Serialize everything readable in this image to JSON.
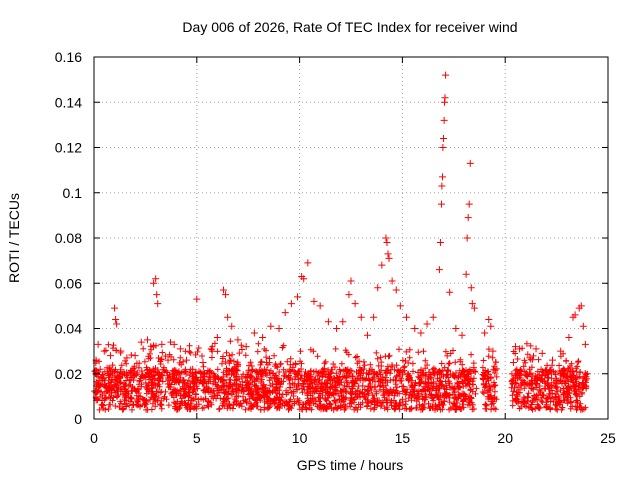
{
  "chart_data": {
    "type": "scatter",
    "title": "Day 006 of 2026, Rate Of TEC Index for receiver wind",
    "xlabel": "GPS time / hours",
    "ylabel": "ROTI / TECUs",
    "xlim": [
      0,
      25
    ],
    "ylim": [
      0,
      0.16
    ],
    "xticks": [
      0,
      5,
      10,
      15,
      20,
      25
    ],
    "xtick_labels": [
      "0",
      "5",
      "10",
      "15",
      "20",
      "25"
    ],
    "yticks": [
      0,
      0.02,
      0.04,
      0.06,
      0.08,
      0.1,
      0.12,
      0.14,
      0.16
    ],
    "ytick_labels": [
      "0",
      "0.02",
      "0.04",
      "0.06",
      "0.08",
      "0.1",
      "0.12",
      "0.14",
      "0.16"
    ],
    "grid": true,
    "marker": "+",
    "color": "#ff0000",
    "series": [
      {
        "name": "ROTI",
        "points": [
          [
            0.1,
            0.026
          ],
          [
            0.2,
            0.033
          ],
          [
            0.3,
            0.022
          ],
          [
            0.5,
            0.03
          ],
          [
            0.8,
            0.028
          ],
          [
            1.0,
            0.049
          ],
          [
            1.05,
            0.044
          ],
          [
            1.1,
            0.042
          ],
          [
            1.3,
            0.03
          ],
          [
            1.6,
            0.027
          ],
          [
            2.0,
            0.028
          ],
          [
            2.3,
            0.034
          ],
          [
            2.6,
            0.035
          ],
          [
            2.9,
            0.06
          ],
          [
            3.0,
            0.062
          ],
          [
            3.05,
            0.055
          ],
          [
            3.1,
            0.051
          ],
          [
            3.3,
            0.033
          ],
          [
            3.6,
            0.026
          ],
          [
            3.9,
            0.033
          ],
          [
            4.2,
            0.031
          ],
          [
            4.5,
            0.026
          ],
          [
            4.8,
            0.022
          ],
          [
            5.0,
            0.053
          ],
          [
            5.3,
            0.025
          ],
          [
            5.7,
            0.031
          ],
          [
            6.0,
            0.036
          ],
          [
            6.3,
            0.057
          ],
          [
            6.4,
            0.055
          ],
          [
            6.5,
            0.045
          ],
          [
            6.7,
            0.041
          ],
          [
            7.0,
            0.035
          ],
          [
            7.4,
            0.032
          ],
          [
            7.8,
            0.038
          ],
          [
            8.2,
            0.036
          ],
          [
            8.6,
            0.041
          ],
          [
            9.0,
            0.04
          ],
          [
            9.3,
            0.047
          ],
          [
            9.6,
            0.051
          ],
          [
            9.9,
            0.054
          ],
          [
            10.1,
            0.063
          ],
          [
            10.2,
            0.062
          ],
          [
            10.4,
            0.069
          ],
          [
            10.7,
            0.052
          ],
          [
            11.0,
            0.05
          ],
          [
            11.4,
            0.043
          ],
          [
            11.8,
            0.04
          ],
          [
            12.1,
            0.043
          ],
          [
            12.4,
            0.055
          ],
          [
            12.5,
            0.061
          ],
          [
            12.7,
            0.051
          ],
          [
            13.0,
            0.045
          ],
          [
            13.3,
            0.037
          ],
          [
            13.6,
            0.045
          ],
          [
            13.8,
            0.058
          ],
          [
            14.0,
            0.068
          ],
          [
            14.2,
            0.08
          ],
          [
            14.25,
            0.078
          ],
          [
            14.3,
            0.073
          ],
          [
            14.35,
            0.071
          ],
          [
            14.5,
            0.061
          ],
          [
            14.7,
            0.057
          ],
          [
            14.9,
            0.05
          ],
          [
            15.2,
            0.045
          ],
          [
            15.6,
            0.04
          ],
          [
            15.9,
            0.038
          ],
          [
            16.2,
            0.042
          ],
          [
            16.5,
            0.045
          ],
          [
            16.8,
            0.066
          ],
          [
            16.85,
            0.078
          ],
          [
            16.9,
            0.095
          ],
          [
            16.92,
            0.103
          ],
          [
            16.95,
            0.107
          ],
          [
            16.97,
            0.12
          ],
          [
            17.0,
            0.124
          ],
          [
            17.03,
            0.132
          ],
          [
            17.05,
            0.14
          ],
          [
            17.07,
            0.142
          ],
          [
            17.1,
            0.152
          ],
          [
            17.3,
            0.056
          ],
          [
            17.6,
            0.04
          ],
          [
            17.9,
            0.037
          ],
          [
            18.1,
            0.064
          ],
          [
            18.15,
            0.08
          ],
          [
            18.2,
            0.089
          ],
          [
            18.25,
            0.095
          ],
          [
            18.3,
            0.113
          ],
          [
            18.35,
            0.058
          ],
          [
            18.4,
            0.051
          ],
          [
            18.5,
            0.049
          ],
          [
            19.0,
            0.038
          ],
          [
            19.2,
            0.044
          ],
          [
            19.3,
            0.041
          ],
          [
            19.4,
            0.03
          ],
          [
            20.4,
            0.025
          ],
          [
            20.5,
            0.032
          ],
          [
            20.7,
            0.031
          ],
          [
            21.2,
            0.027
          ],
          [
            21.5,
            0.031
          ],
          [
            21.8,
            0.029
          ],
          [
            22.3,
            0.026
          ],
          [
            22.7,
            0.03
          ],
          [
            23.1,
            0.036
          ],
          [
            23.3,
            0.045
          ],
          [
            23.4,
            0.046
          ],
          [
            23.6,
            0.049
          ],
          [
            23.7,
            0.05
          ],
          [
            23.8,
            0.041
          ],
          [
            23.9,
            0.033
          ]
        ]
      }
    ]
  }
}
